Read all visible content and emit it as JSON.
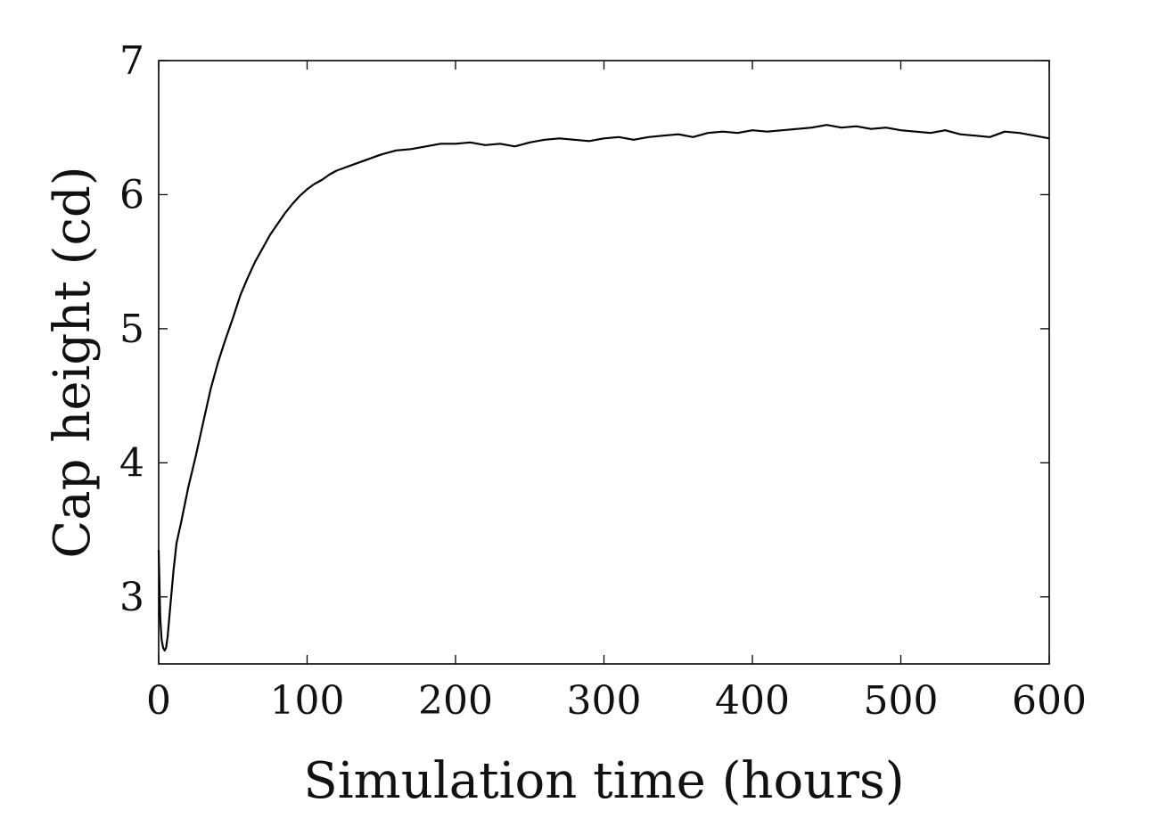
{
  "chart_data": {
    "type": "line",
    "title": "",
    "xlabel": "Simulation time (hours)",
    "ylabel": "Cap height (cd)",
    "xlim": [
      0,
      600
    ],
    "ylim": [
      2.5,
      7
    ],
    "xticks": [
      0,
      100,
      200,
      300,
      400,
      500,
      600
    ],
    "yticks": [
      3,
      4,
      5,
      6,
      7
    ],
    "xtick_labels": [
      "0",
      "100",
      "200",
      "300",
      "400",
      "500",
      "600"
    ],
    "ytick_labels": [
      "3",
      "4",
      "5",
      "6",
      "7"
    ],
    "grid": false,
    "legend": "none",
    "line_color": "#000000",
    "series": [
      {
        "x": [
          0,
          1,
          2,
          3,
          4,
          5,
          6,
          8,
          10,
          12,
          15,
          20,
          25,
          30,
          35,
          40,
          45,
          50,
          55,
          60,
          65,
          70,
          75,
          80,
          85,
          90,
          95,
          100,
          105,
          110,
          115,
          120,
          125,
          130,
          135,
          140,
          145,
          150,
          160,
          170,
          180,
          190,
          200,
          210,
          220,
          230,
          240,
          250,
          260,
          270,
          280,
          290,
          300,
          310,
          320,
          330,
          340,
          350,
          360,
          370,
          380,
          390,
          400,
          410,
          420,
          430,
          440,
          450,
          460,
          470,
          480,
          490,
          500,
          510,
          520,
          530,
          540,
          550,
          560,
          570,
          580,
          590,
          600
        ],
        "values": [
          3.35,
          2.85,
          2.68,
          2.62,
          2.6,
          2.62,
          2.7,
          2.95,
          3.2,
          3.4,
          3.55,
          3.82,
          4.05,
          4.3,
          4.55,
          4.75,
          4.92,
          5.08,
          5.25,
          5.38,
          5.5,
          5.6,
          5.7,
          5.78,
          5.86,
          5.93,
          5.99,
          6.04,
          6.08,
          6.11,
          6.15,
          6.18,
          6.2,
          6.22,
          6.24,
          6.26,
          6.28,
          6.3,
          6.33,
          6.34,
          6.36,
          6.38,
          6.38,
          6.39,
          6.37,
          6.38,
          6.36,
          6.39,
          6.41,
          6.42,
          6.41,
          6.4,
          6.42,
          6.43,
          6.41,
          6.43,
          6.44,
          6.45,
          6.43,
          6.46,
          6.47,
          6.46,
          6.48,
          6.47,
          6.48,
          6.49,
          6.5,
          6.52,
          6.5,
          6.51,
          6.49,
          6.5,
          6.48,
          6.47,
          6.46,
          6.48,
          6.45,
          6.44,
          6.43,
          6.47,
          6.46,
          6.44,
          6.42
        ]
      }
    ]
  }
}
